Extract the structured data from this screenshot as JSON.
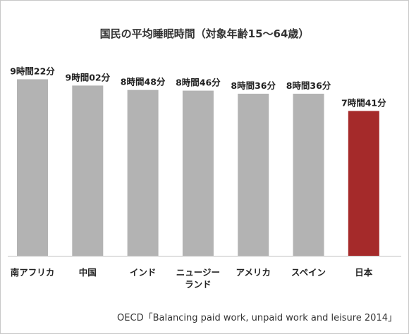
{
  "chart_data": {
    "type": "bar",
    "title": "国民の平均睡眠時間（対象年齢15〜64歳）",
    "xlabel": "",
    "ylabel": "",
    "unit": "minutes",
    "grid": false,
    "legend": "none",
    "ylim": [
      0,
      560
    ],
    "categories": [
      [
        "南アフリカ"
      ],
      [
        "中国"
      ],
      [
        "インド"
      ],
      [
        "ニュージー",
        "ランド"
      ],
      [
        "アメリカ"
      ],
      [
        "スペイン"
      ],
      [
        "日本"
      ]
    ],
    "values": [
      562,
      542,
      528,
      526,
      516,
      516,
      461
    ],
    "value_labels": [
      "9時間22分",
      "9時間02分",
      "8時間48分",
      "8時間46分",
      "8時間36分",
      "8時間36分",
      "7時間41分"
    ],
    "highlight_index": 6
  },
  "colors": {
    "bar": "#b3b3b3",
    "highlight": "#a52a2a",
    "baseline": "#c0c0c0"
  },
  "source": "OECD「Balancing paid work, unpaid work and leisure 2014」"
}
